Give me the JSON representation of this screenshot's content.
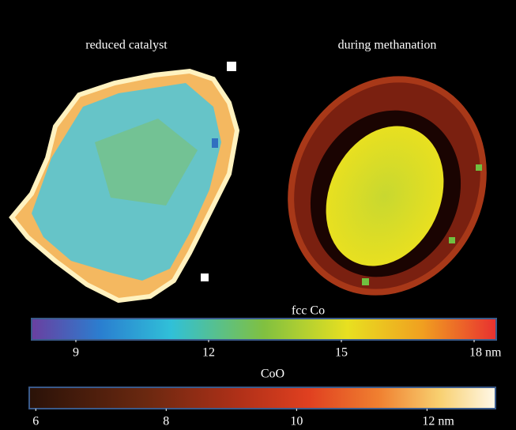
{
  "panels": [
    {
      "label": "reduced catalyst"
    },
    {
      "label": "during methanation"
    }
  ],
  "colorbars": [
    {
      "title": "fcc Co",
      "lim": [
        8,
        18.5
      ],
      "ticks": [
        9,
        12,
        15,
        {
          "value": 18,
          "label": "18 nm"
        }
      ]
    },
    {
      "title": "CoO",
      "lim": [
        5.9,
        13.05
      ],
      "ticks": [
        6,
        8,
        10,
        {
          "value": 12,
          "label": "12 nm"
        }
      ]
    }
  ]
}
